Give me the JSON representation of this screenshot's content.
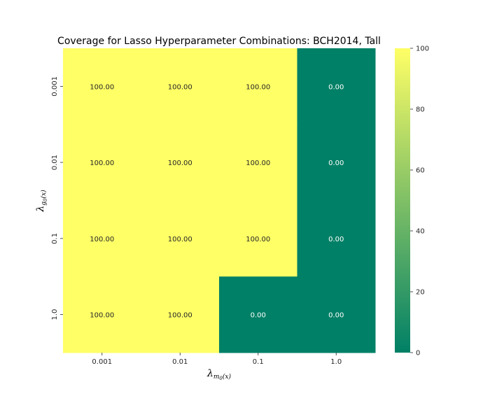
{
  "chart_data": {
    "type": "heatmap",
    "title": "Coverage for Lasso Hyperparameter Combinations: BCH2014, Tall",
    "xlabel": {
      "main": "λ",
      "sub": "m",
      "sub2": "0",
      "arg": "(x)"
    },
    "ylabel": {
      "main": "λ",
      "sub": "g",
      "sub2": "0",
      "arg": "(x)"
    },
    "x_categories": [
      "0.001",
      "0.01",
      "0.1",
      "1.0"
    ],
    "y_categories": [
      "0.001",
      "0.01",
      "0.1",
      "1.0"
    ],
    "values": [
      [
        100.0,
        100.0,
        100.0,
        0.0
      ],
      [
        100.0,
        100.0,
        100.0,
        0.0
      ],
      [
        100.0,
        100.0,
        100.0,
        0.0
      ],
      [
        100.0,
        100.0,
        0.0,
        0.0
      ]
    ],
    "value_labels": [
      [
        "100.00",
        "100.00",
        "100.00",
        "0.00"
      ],
      [
        "100.00",
        "100.00",
        "100.00",
        "0.00"
      ],
      [
        "100.00",
        "100.00",
        "100.00",
        "0.00"
      ],
      [
        "100.00",
        "100.00",
        "0.00",
        "0.00"
      ]
    ],
    "colormap": "summer",
    "colorbar": {
      "range": [
        0,
        100
      ],
      "ticks": [
        "0",
        "20",
        "40",
        "60",
        "80",
        "100"
      ],
      "low_color": "#008066",
      "high_color": "#ffff66"
    },
    "grid": false,
    "legend": "none"
  }
}
